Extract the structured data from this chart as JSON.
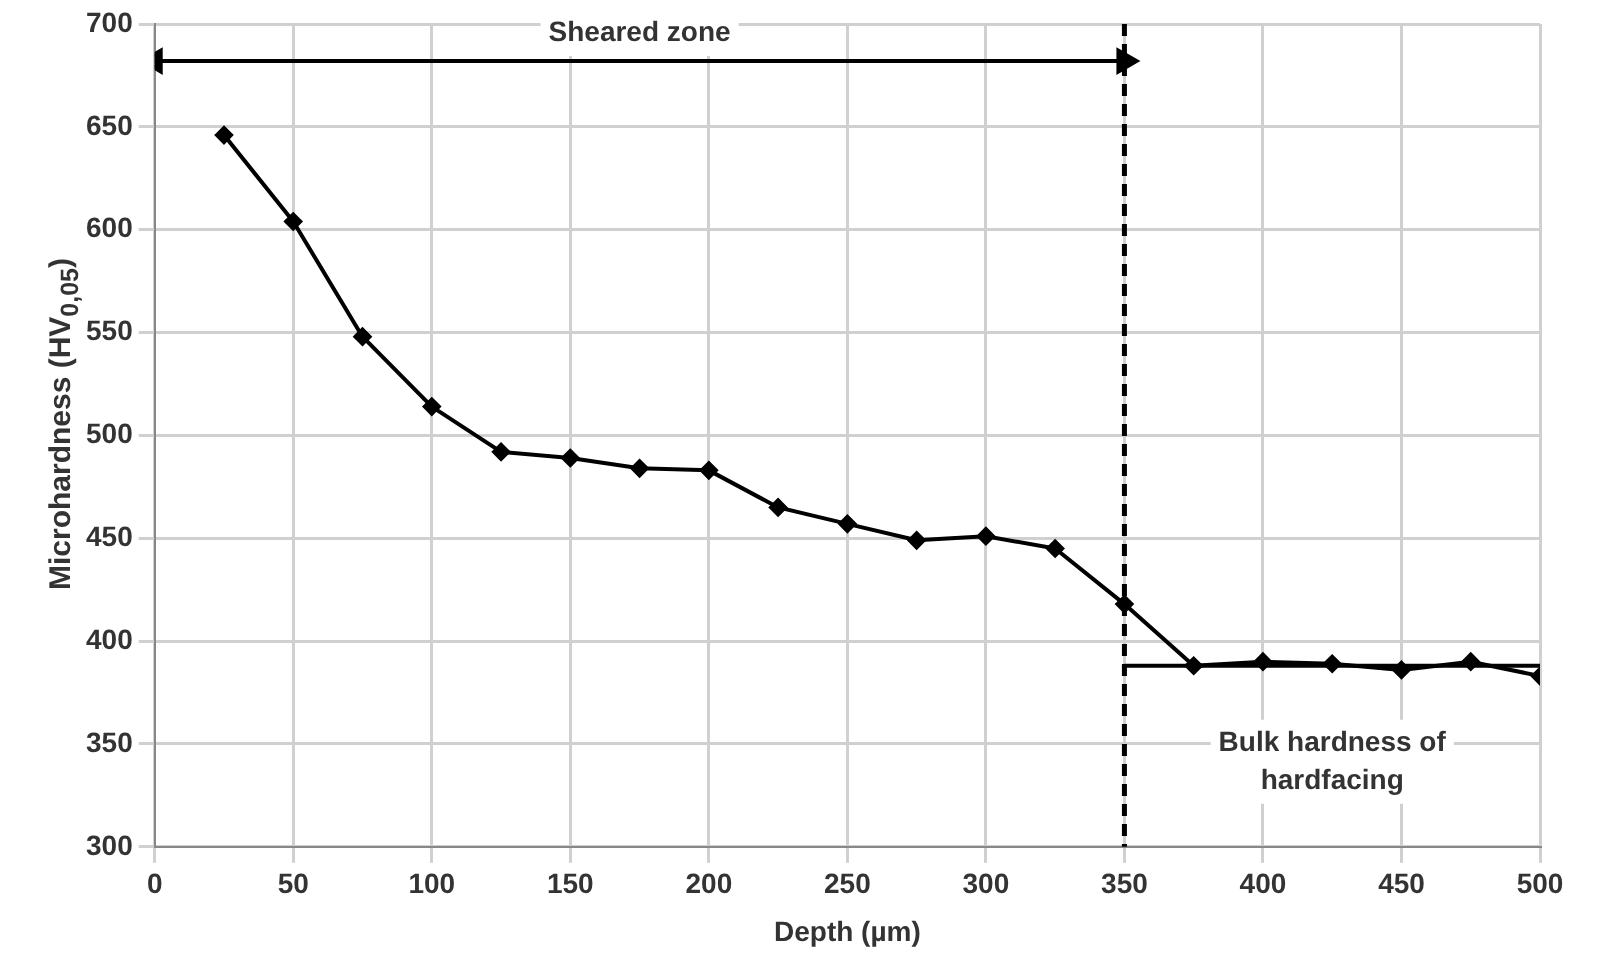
{
  "chart_data": {
    "type": "line",
    "xlabel": "Depth (µm)",
    "ylabel": "Microhardness  (HV$_{0,05}$)",
    "x": [
      25,
      50,
      75,
      100,
      125,
      150,
      175,
      200,
      225,
      250,
      275,
      300,
      325,
      350,
      375,
      400,
      425,
      450,
      475,
      500
    ],
    "series": [
      {
        "color": "#000000",
        "values": [
          646,
          604,
          548,
          514,
          492,
          489,
          484,
          483,
          465,
          457,
          449,
          451,
          445,
          418,
          388,
          390,
          389,
          386,
          390,
          383
        ]
      },
      {
        "type": "line",
        "name": "Bulk hardness of hardfacing",
        "color": "#000000",
        "marker": "none",
        "x": [
          350,
          500
        ],
        "values": [
          388,
          388
        ]
      },
      {
        "type": "line",
        "name": "Sheared zone",
        "color": "#000000",
        "marker": "triangle",
        "x": [
          0,
          350
        ],
        "values": [
          682,
          682
        ]
      }
    ],
    "xlim": [
      0,
      500
    ],
    "xticks": [
      0,
      50,
      100,
      150,
      200,
      250,
      300,
      350,
      400,
      450,
      500
    ],
    "ylim": [
      300,
      700
    ],
    "yticks": [
      300,
      350,
      400,
      450,
      500,
      550,
      600,
      650,
      700
    ],
    "grid": true,
    "marker": "diamond",
    "line_style": "solid",
    "ref_lines": [
      {
        "axis": "x",
        "value": 350,
        "line_style": "dashed",
        "color": "#000000"
      }
    ],
    "legend": false
  }
}
